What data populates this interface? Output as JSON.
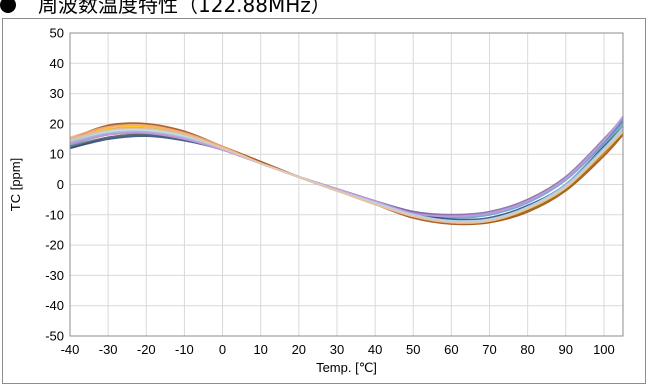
{
  "page": {
    "title": "周波数温度特性（122.88MHz）"
  },
  "chart_data": {
    "type": "line",
    "title": "周波数温度特性（122.88MHz）",
    "xlabel": "Temp. [℃]",
    "ylabel": "TC [ppm]",
    "xlim": [
      -40,
      105
    ],
    "ylim": [
      -50,
      50
    ],
    "x_ticks": [
      -40,
      -30,
      -20,
      -10,
      0,
      10,
      20,
      30,
      40,
      50,
      60,
      70,
      80,
      90,
      100
    ],
    "y_ticks": [
      50,
      40,
      30,
      20,
      10,
      0,
      -10,
      -20,
      -30,
      -40,
      -50
    ],
    "grid": true,
    "legend": "none",
    "series_colors": [
      "#4472c4",
      "#ed7d31",
      "#a5a5a5",
      "#ffc000",
      "#5b9bd5",
      "#70ad47",
      "#264478",
      "#9e480e",
      "#636363",
      "#997300",
      "#8064a2",
      "#f4b183",
      "#9dc3e6",
      "#c9a0dc",
      "#bdd7ee",
      "#e7c7a7"
    ],
    "series": [
      {
        "x": [
          -40,
          -30,
          -20,
          -10,
          0,
          10,
          20,
          30,
          40,
          50,
          60,
          70,
          80,
          90,
          100,
          105
        ],
        "values": [
          12,
          15.5,
          16.5,
          15,
          11.5,
          7,
          2.5,
          -1.5,
          -5.5,
          -9,
          -10.5,
          -9.5,
          -5.5,
          2,
          14,
          21
        ]
      },
      {
        "x": [
          -40,
          -30,
          -20,
          -10,
          0,
          10,
          20,
          30,
          40,
          50,
          60,
          70,
          80,
          90,
          100,
          105
        ],
        "values": [
          15,
          19,
          19.5,
          17,
          12.5,
          7.5,
          2.5,
          -2,
          -6.5,
          -10.5,
          -12.5,
          -12,
          -8,
          -1,
          11,
          17
        ]
      },
      {
        "x": [
          -40,
          -30,
          -20,
          -10,
          0,
          10,
          20,
          30,
          40,
          50,
          60,
          70,
          80,
          90,
          100,
          105
        ],
        "values": [
          14,
          17,
          17.5,
          15.5,
          11.5,
          7,
          2.5,
          -1.5,
          -6,
          -10,
          -12,
          -11.5,
          -7.5,
          -0.5,
          11.5,
          18
        ]
      },
      {
        "x": [
          -40,
          -30,
          -20,
          -10,
          0,
          10,
          20,
          30,
          40,
          50,
          60,
          70,
          80,
          90,
          100,
          105
        ],
        "values": [
          14.5,
          18.5,
          19,
          16.5,
          12,
          7,
          2.5,
          -2,
          -6.5,
          -10.5,
          -12.5,
          -12.5,
          -8.5,
          -1.5,
          10.5,
          17
        ]
      },
      {
        "x": [
          -40,
          -30,
          -20,
          -10,
          0,
          10,
          20,
          30,
          40,
          50,
          60,
          70,
          80,
          90,
          100,
          105
        ],
        "values": [
          13,
          16.5,
          17,
          15,
          11.5,
          7,
          2.5,
          -1.5,
          -5.5,
          -9.5,
          -11,
          -10,
          -6,
          1.5,
          13.5,
          20.5
        ]
      },
      {
        "x": [
          -40,
          -30,
          -20,
          -10,
          0,
          10,
          20,
          30,
          40,
          50,
          60,
          70,
          80,
          90,
          100,
          105
        ],
        "values": [
          14,
          16.5,
          17,
          15,
          11.5,
          7,
          2.5,
          -2,
          -6,
          -10,
          -12,
          -11.5,
          -7.5,
          0,
          12.5,
          19.5
        ]
      },
      {
        "x": [
          -40,
          -30,
          -20,
          -10,
          0,
          10,
          20,
          30,
          40,
          50,
          60,
          70,
          80,
          90,
          100,
          105
        ],
        "values": [
          12,
          15,
          16,
          14.5,
          11.5,
          7,
          2.5,
          -1.5,
          -5.5,
          -9.5,
          -11.5,
          -11,
          -7,
          0,
          12.5,
          19
        ]
      },
      {
        "x": [
          -40,
          -30,
          -20,
          -10,
          0,
          10,
          20,
          30,
          40,
          50,
          60,
          70,
          80,
          90,
          100,
          105
        ],
        "values": [
          15,
          19.5,
          20,
          17.5,
          12.5,
          7.5,
          2.5,
          -2,
          -6.5,
          -11,
          -13,
          -12.5,
          -9,
          -2,
          9.5,
          16.5
        ]
      },
      {
        "x": [
          -40,
          -30,
          -20,
          -10,
          0,
          10,
          20,
          30,
          40,
          50,
          60,
          70,
          80,
          90,
          100,
          105
        ],
        "values": [
          12.5,
          15.5,
          16.5,
          15,
          11.5,
          7,
          2.5,
          -2,
          -6,
          -10,
          -12,
          -11.5,
          -8,
          -1,
          11,
          18
        ]
      },
      {
        "x": [
          -40,
          -30,
          -20,
          -10,
          0,
          10,
          20,
          30,
          40,
          50,
          60,
          70,
          80,
          90,
          100,
          105
        ],
        "values": [
          14.5,
          18,
          18.5,
          16.5,
          12,
          7,
          2.5,
          -2,
          -6,
          -10.5,
          -12.5,
          -12,
          -8.5,
          -1.5,
          10.5,
          17
        ]
      },
      {
        "x": [
          -40,
          -30,
          -20,
          -10,
          0,
          10,
          20,
          30,
          40,
          50,
          60,
          70,
          80,
          90,
          100,
          105
        ],
        "values": [
          13.5,
          16.5,
          17,
          15,
          11.5,
          7,
          2.5,
          -1.5,
          -5.5,
          -9,
          -10,
          -9,
          -5,
          2.5,
          15,
          22
        ]
      },
      {
        "x": [
          -40,
          -30,
          -20,
          -10,
          0,
          10,
          20,
          30,
          40,
          50,
          60,
          70,
          80,
          90,
          100,
          105
        ],
        "values": [
          15.5,
          19,
          19.5,
          17,
          12.5,
          7,
          2.5,
          -2,
          -6.5,
          -10.5,
          -12.5,
          -12,
          -8,
          -1,
          11,
          17.5
        ]
      },
      {
        "x": [
          -40,
          -30,
          -20,
          -10,
          0,
          10,
          20,
          30,
          40,
          50,
          60,
          70,
          80,
          90,
          100,
          105
        ],
        "values": [
          14,
          17,
          17.5,
          15.5,
          11.5,
          7,
          2.5,
          -1.5,
          -6,
          -10,
          -12,
          -11.5,
          -7.5,
          0,
          12,
          19
        ]
      },
      {
        "x": [
          -40,
          -30,
          -20,
          -10,
          0,
          10,
          20,
          30,
          40,
          50,
          60,
          70,
          80,
          90,
          100,
          105
        ],
        "values": [
          13.5,
          16.5,
          17,
          15,
          11.5,
          7,
          2.5,
          -1.5,
          -5.5,
          -9.5,
          -10.5,
          -9.5,
          -5.5,
          2,
          14.5,
          22.5
        ]
      },
      {
        "x": [
          -40,
          -30,
          -20,
          -10,
          0,
          10,
          20,
          30,
          40,
          50,
          60,
          70,
          80,
          90,
          100,
          105
        ],
        "values": [
          14.5,
          17.5,
          18,
          16,
          12,
          7,
          2.5,
          -2,
          -6,
          -10,
          -12,
          -11.5,
          -7.5,
          -0.5,
          11.5,
          18.5
        ]
      },
      {
        "x": [
          -40,
          -30,
          -20,
          -10,
          0,
          10,
          20,
          30,
          40,
          50,
          60,
          70,
          80,
          90,
          100,
          105
        ],
        "values": [
          15,
          18,
          18.5,
          16.5,
          12,
          7,
          2.5,
          -2,
          -6.5,
          -10.5,
          -12.5,
          -12,
          -8,
          -1,
          11,
          17.5
        ]
      }
    ]
  }
}
